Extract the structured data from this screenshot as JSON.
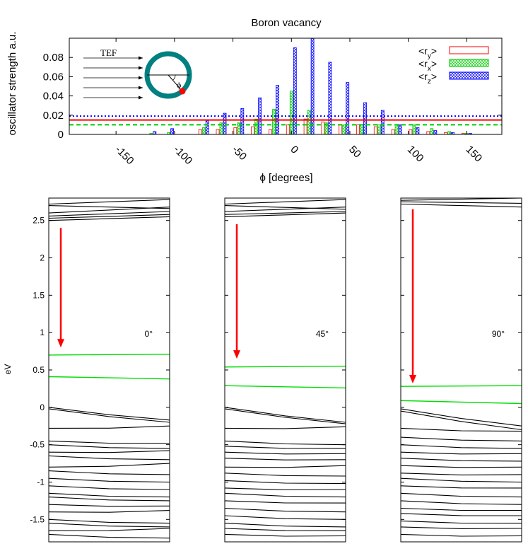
{
  "chart_data": [
    {
      "type": "bar",
      "title": "Boron vacancy",
      "xlabel": "ϕ [degrees]",
      "ylabel": "oscillator strength a.u.",
      "xlim": [
        -190,
        180
      ],
      "ylim": [
        0,
        0.1
      ],
      "yticks": [
        0,
        0.02,
        0.04,
        0.06,
        0.08
      ],
      "ytick_labels": [
        "0",
        "0.02",
        "0.04",
        "0.06",
        "0.08"
      ],
      "xticks": [
        -150,
        -100,
        -50,
        0,
        50,
        100,
        150
      ],
      "xtick_labels": [
        "-150",
        "-100",
        "-50",
        "0",
        "50",
        "100",
        "150"
      ],
      "legend_position": "top-right",
      "grid": false,
      "x": [
        -165,
        -150,
        -135,
        -120,
        -105,
        -90,
        -75,
        -60,
        -45,
        -30,
        -15,
        0,
        15,
        30,
        45,
        60,
        75,
        90,
        105,
        120,
        135,
        150,
        165
      ],
      "series": [
        {
          "name": "<r_y>",
          "legend_main": "<r",
          "legend_sub": "y",
          "legend_end": ">",
          "color": "#ff0000",
          "values": [
            0.0,
            0.0,
            0.0,
            0.0,
            0.0,
            0.0,
            0.005,
            0.005,
            0.007,
            0.008,
            0.005,
            0.01,
            0.016,
            0.013,
            0.01,
            0.01,
            0.008,
            0.005,
            0.005,
            0.003,
            0.002,
            0.001,
            0.0
          ]
        },
        {
          "name": "<r_x>",
          "legend_main": "<r",
          "legend_sub": "x",
          "legend_end": ">",
          "color": "#00cc00",
          "values": [
            0.0,
            0.0,
            0.0,
            0.001,
            0.002,
            0.0,
            0.007,
            0.012,
            0.012,
            0.016,
            0.026,
            0.045,
            0.025,
            0.012,
            0.01,
            0.01,
            0.01,
            0.01,
            0.01,
            0.006,
            0.003,
            0.001,
            0.0
          ]
        },
        {
          "name": "<r_z>",
          "legend_main": "<r",
          "legend_sub": "z",
          "legend_end": ">",
          "color": "#0000ff",
          "values": [
            0.0,
            0.0,
            0.0,
            0.003,
            0.006,
            0.0,
            0.014,
            0.022,
            0.027,
            0.038,
            0.051,
            0.09,
            0.1,
            0.075,
            0.054,
            0.033,
            0.025,
            0.01,
            0.007,
            0.004,
            0.002,
            0.001,
            0.0
          ]
        }
      ],
      "reference_lines": [
        {
          "series": "<r_z>",
          "y": 0.019,
          "style": "dotted",
          "color": "#0000ff"
        },
        {
          "series": "<r_y>",
          "y": 0.015,
          "style": "solid",
          "color": "#ff0000"
        },
        {
          "series": "<r_x>",
          "y": 0.01,
          "style": "dashed",
          "color": "#00cc00"
        }
      ],
      "inset": {
        "label": "TEF",
        "angle_label": "ϕ",
        "ring_color": "#008080",
        "dot_color": "#ff0000"
      }
    },
    {
      "type": "line",
      "ylabel": "eV",
      "ylim": [
        -1.8,
        2.8
      ],
      "yticks": [
        -1.5,
        -1,
        -0.5,
        0,
        0.5,
        1,
        1.5,
        2,
        2.5
      ],
      "ytick_labels": [
        "-1.5",
        "-1",
        "-0.5",
        "0",
        "0.5",
        "1",
        "1.5",
        "2",
        "2.5"
      ],
      "arrow_color": "#ff0000",
      "defect_color": "#00dd00",
      "band_color": "#000000",
      "panels": [
        {
          "angle_label": "0°",
          "arrow": {
            "from": 2.4,
            "to": 0.8
          },
          "defect_bands": [
            [
              0.7,
              0.71
            ],
            [
              0.41,
              0.38
            ]
          ],
          "conduction_bands": [
            [
              2.72,
              2.78
            ],
            [
              2.7,
              2.66
            ],
            [
              2.6,
              2.68
            ],
            [
              2.56,
              2.62
            ],
            [
              2.53,
              2.58
            ],
            [
              2.5,
              2.55
            ]
          ],
          "valence_bands": [
            [
              0.0,
              -0.17
            ],
            [
              -0.02,
              -0.2
            ],
            [
              -0.28,
              -0.25
            ],
            [
              -0.45,
              -0.48
            ],
            [
              -0.5,
              -0.55
            ],
            [
              -0.6,
              -0.58
            ],
            [
              -0.65,
              -0.7
            ],
            [
              -0.8,
              -0.75
            ],
            [
              -0.85,
              -0.9
            ],
            [
              -0.95,
              -1.0
            ],
            [
              -1.05,
              -1.1
            ],
            [
              -1.15,
              -1.2
            ],
            [
              -1.2,
              -1.25
            ],
            [
              -1.3,
              -1.32
            ],
            [
              -1.4,
              -1.38
            ],
            [
              -1.5,
              -1.55
            ],
            [
              -1.55,
              -1.6
            ],
            [
              -1.65,
              -1.62
            ],
            [
              -1.7,
              -1.75
            ]
          ]
        },
        {
          "angle_label": "45°",
          "arrow": {
            "from": 2.45,
            "to": 0.65
          },
          "defect_bands": [
            [
              0.54,
              0.55
            ],
            [
              0.29,
              0.26
            ]
          ],
          "conduction_bands": [
            [
              2.72,
              2.78
            ],
            [
              2.7,
              2.65
            ],
            [
              2.62,
              2.68
            ],
            [
              2.58,
              2.62
            ],
            [
              2.55,
              2.6
            ]
          ],
          "valence_bands": [
            [
              0.0,
              -0.2
            ],
            [
              -0.02,
              -0.22
            ],
            [
              -0.28,
              -0.26
            ],
            [
              -0.45,
              -0.5
            ],
            [
              -0.52,
              -0.55
            ],
            [
              -0.6,
              -0.62
            ],
            [
              -0.68,
              -0.7
            ],
            [
              -0.8,
              -0.78
            ],
            [
              -0.88,
              -0.92
            ],
            [
              -0.98,
              -1.02
            ],
            [
              -1.08,
              -1.1
            ],
            [
              -1.15,
              -1.2
            ],
            [
              -1.25,
              -1.28
            ],
            [
              -1.35,
              -1.4
            ],
            [
              -1.45,
              -1.5
            ],
            [
              -1.55,
              -1.6
            ],
            [
              -1.62,
              -1.65
            ],
            [
              -1.7,
              -1.72
            ]
          ]
        },
        {
          "angle_label": "90°",
          "arrow": {
            "from": 2.65,
            "to": 0.32
          },
          "defect_bands": [
            [
              0.28,
              0.29
            ],
            [
              0.09,
              0.05
            ]
          ],
          "conduction_bands": [
            [
              2.77,
              2.8
            ],
            [
              2.75,
              2.73
            ],
            [
              2.72,
              2.68
            ]
          ],
          "valence_bands": [
            [
              -0.02,
              -0.25
            ],
            [
              -0.05,
              -0.3
            ],
            [
              -0.28,
              -0.32
            ],
            [
              -0.4,
              -0.45
            ],
            [
              -0.5,
              -0.55
            ],
            [
              -0.6,
              -0.62
            ],
            [
              -0.68,
              -0.72
            ],
            [
              -0.78,
              -0.8
            ],
            [
              -0.88,
              -0.9
            ],
            [
              -0.95,
              -1.0
            ],
            [
              -1.05,
              -1.08
            ],
            [
              -1.15,
              -1.2
            ],
            [
              -1.25,
              -1.3
            ],
            [
              -1.35,
              -1.38
            ],
            [
              -1.42,
              -1.45
            ],
            [
              -1.52,
              -1.55
            ],
            [
              -1.6,
              -1.62
            ],
            [
              -1.7,
              -1.72
            ]
          ]
        }
      ]
    }
  ]
}
